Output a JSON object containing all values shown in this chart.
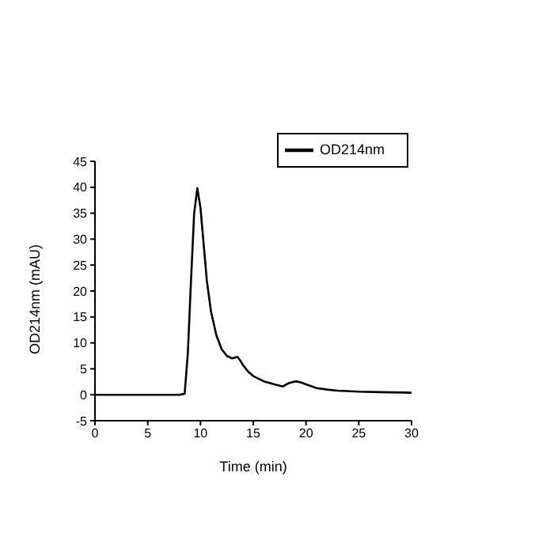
{
  "chart_data": {
    "type": "line",
    "xlabel": "Time (min)",
    "ylabel": "OD214nm (mAU)",
    "xlim": [
      0,
      30
    ],
    "ylim": [
      -5,
      45
    ],
    "xticks": [
      0,
      5,
      10,
      15,
      20,
      25,
      30
    ],
    "yticks": [
      -5,
      0,
      5,
      10,
      15,
      20,
      25,
      30,
      35,
      40,
      45
    ],
    "legend": "top right",
    "marker": "none",
    "line_style": "solid",
    "series": [
      {
        "name": "OD214nm",
        "color": "#000000",
        "x": [
          0,
          2,
          4,
          6,
          8,
          8.5,
          8.8,
          9.1,
          9.4,
          9.7,
          10,
          10.3,
          10.6,
          11,
          11.5,
          12,
          12.5,
          13,
          13.5,
          13.8,
          14,
          14.5,
          15,
          16,
          17,
          17.8,
          18.3,
          19,
          19.5,
          20,
          21,
          22,
          23,
          25,
          27,
          30
        ],
        "values": [
          0,
          0,
          0,
          0,
          0,
          0.2,
          8,
          22,
          35,
          39.8,
          36,
          29,
          22,
          16,
          11.5,
          8.8,
          7.5,
          7,
          7.3,
          6.5,
          5.8,
          4.5,
          3.6,
          2.6,
          2,
          1.6,
          2.2,
          2.6,
          2.4,
          2,
          1.3,
          1,
          0.8,
          0.6,
          0.5,
          0.4
        ]
      }
    ]
  }
}
